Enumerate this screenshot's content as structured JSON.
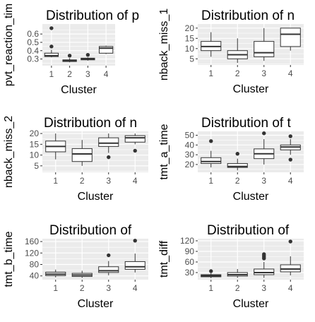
{
  "x_axis_title": "Cluster",
  "categories": [
    "1",
    "2",
    "3",
    "4"
  ],
  "chart_data": [
    {
      "type": "boxplot",
      "title": "Distribution of p",
      "xlabel": "Cluster",
      "ylabel": "pvt_reaction_tim",
      "ylim": [
        0.22,
        0.72
      ],
      "yticks": [
        0.3,
        0.4,
        0.5,
        0.6
      ],
      "ytick_labels": [
        "0.3",
        "0.4",
        "0.5",
        "0.6"
      ],
      "grid": true,
      "boxes": [
        {
          "category": "1",
          "low": 0.32,
          "q1": 0.33,
          "median": 0.34,
          "q3": 0.37,
          "high": 0.41,
          "outliers": [
            0.45,
            0.67
          ]
        },
        {
          "category": "2",
          "low": 0.26,
          "q1": 0.27,
          "median": 0.28,
          "q3": 0.29,
          "high": 0.31,
          "outliers": [
            0.34
          ]
        },
        {
          "category": "3",
          "low": 0.28,
          "q1": 0.29,
          "median": 0.3,
          "q3": 0.31,
          "high": 0.32,
          "outliers": [
            0.35
          ]
        },
        {
          "category": "4",
          "low": 0.36,
          "q1": 0.37,
          "median": 0.43,
          "q3": 0.45,
          "high": 0.46,
          "outliers": []
        }
      ]
    },
    {
      "type": "boxplot",
      "title": "Distribution of n",
      "xlabel": "Cluster",
      "ylabel": "nback_miss_1",
      "ylim": [
        2,
        22
      ],
      "yticks": [
        5,
        10,
        15,
        20
      ],
      "ytick_labels": [
        "5",
        "10",
        "15",
        "20"
      ],
      "grid": true,
      "boxes": [
        {
          "category": "1",
          "low": 6,
          "q1": 9,
          "median": 11,
          "q3": 13.5,
          "high": 18,
          "outliers": []
        },
        {
          "category": "2",
          "low": 3,
          "q1": 5,
          "median": 7,
          "q3": 9,
          "high": 15,
          "outliers": []
        },
        {
          "category": "3",
          "low": 4,
          "q1": 6,
          "median": 8,
          "q3": 13.5,
          "high": 20,
          "outliers": []
        },
        {
          "category": "4",
          "low": 9,
          "q1": 11,
          "median": 17,
          "q3": 20,
          "high": 20,
          "outliers": []
        }
      ]
    },
    {
      "type": "boxplot",
      "title": "Distribution of n",
      "xlabel": "Cluster",
      "ylabel": "nback_miss_2",
      "ylim": [
        2,
        21
      ],
      "yticks": [
        5,
        10,
        15,
        20
      ],
      "ytick_labels": [
        "5",
        "10",
        "15",
        "20"
      ],
      "grid": true,
      "boxes": [
        {
          "category": "1",
          "low": 8,
          "q1": 11.5,
          "median": 14,
          "q3": 16.5,
          "high": 20,
          "outliers": []
        },
        {
          "category": "2",
          "low": 5,
          "q1": 7,
          "median": 10.5,
          "q3": 13,
          "high": 17,
          "outliers": []
        },
        {
          "category": "3",
          "low": 11,
          "q1": 14,
          "median": 15.5,
          "q3": 18,
          "high": 20,
          "outliers": [
            9
          ]
        },
        {
          "category": "4",
          "low": 15,
          "q1": 16,
          "median": 18,
          "q3": 19,
          "high": 20,
          "outliers": [
            12
          ]
        }
      ]
    },
    {
      "type": "boxplot",
      "title": "Distribution of t",
      "xlabel": "Cluster",
      "ylabel": "tmt_a_time",
      "ylim": [
        12,
        54
      ],
      "yticks": [
        20,
        30,
        40,
        50
      ],
      "ytick_labels": [
        "20",
        "30",
        "40",
        "50"
      ],
      "grid": true,
      "boxes": [
        {
          "category": "1",
          "low": 17,
          "q1": 21,
          "median": 23,
          "q3": 27,
          "high": 34,
          "outliers": [
            44
          ]
        },
        {
          "category": "2",
          "low": 14,
          "q1": 17,
          "median": 18,
          "q3": 21,
          "high": 26,
          "outliers": [
            31
          ]
        },
        {
          "category": "3",
          "low": 20,
          "q1": 26,
          "median": 31,
          "q3": 36,
          "high": 46,
          "outliers": [
            52
          ]
        },
        {
          "category": "4",
          "low": 30,
          "q1": 35,
          "median": 38,
          "q3": 40,
          "high": 46,
          "outliers": [
            49,
            25
          ]
        }
      ]
    },
    {
      "type": "boxplot",
      "title": "Distribution of",
      "xlabel": "Cluster",
      "ylabel": "tmt_b_time",
      "ylim": [
        27,
        170
      ],
      "yticks": [
        40,
        80,
        120,
        160
      ],
      "ytick_labels": [
        "40",
        "80",
        "120",
        "160"
      ],
      "grid": true,
      "boxes": [
        {
          "category": "1",
          "low": 35,
          "q1": 41,
          "median": 46,
          "q3": 53,
          "high": 62,
          "outliers": []
        },
        {
          "category": "2",
          "low": 33,
          "q1": 38,
          "median": 43,
          "q3": 49,
          "high": 58,
          "outliers": []
        },
        {
          "category": "3",
          "low": 42,
          "q1": 52,
          "median": 58,
          "q3": 72,
          "high": 92,
          "outliers": [
            112
          ]
        },
        {
          "category": "4",
          "low": 52,
          "q1": 63,
          "median": 72,
          "q3": 90,
          "high": 118,
          "outliers": [
            163
          ]
        }
      ]
    },
    {
      "type": "boxplot",
      "title": "Distribution of",
      "xlabel": "Cluster",
      "ylabel": "tmt_diff",
      "ylim": [
        10,
        126
      ],
      "yticks": [
        30,
        60,
        90,
        120
      ],
      "ytick_labels": [
        "30",
        "60",
        "90",
        "120"
      ],
      "grid": true,
      "boxes": [
        {
          "category": "1",
          "low": 14,
          "q1": 18,
          "median": 21,
          "q3": 24,
          "high": 28,
          "outliers": [
            34
          ]
        },
        {
          "category": "2",
          "low": 15,
          "q1": 20,
          "median": 24,
          "q3": 30,
          "high": 40,
          "outliers": []
        },
        {
          "category": "3",
          "low": 15,
          "q1": 24,
          "median": 30,
          "q3": 40,
          "high": 60,
          "outliers": [
            70,
            74,
            78,
            82
          ]
        },
        {
          "category": "4",
          "low": 22,
          "q1": 32,
          "median": 40,
          "q3": 52,
          "high": 76,
          "outliers": [
            118
          ]
        }
      ]
    }
  ]
}
